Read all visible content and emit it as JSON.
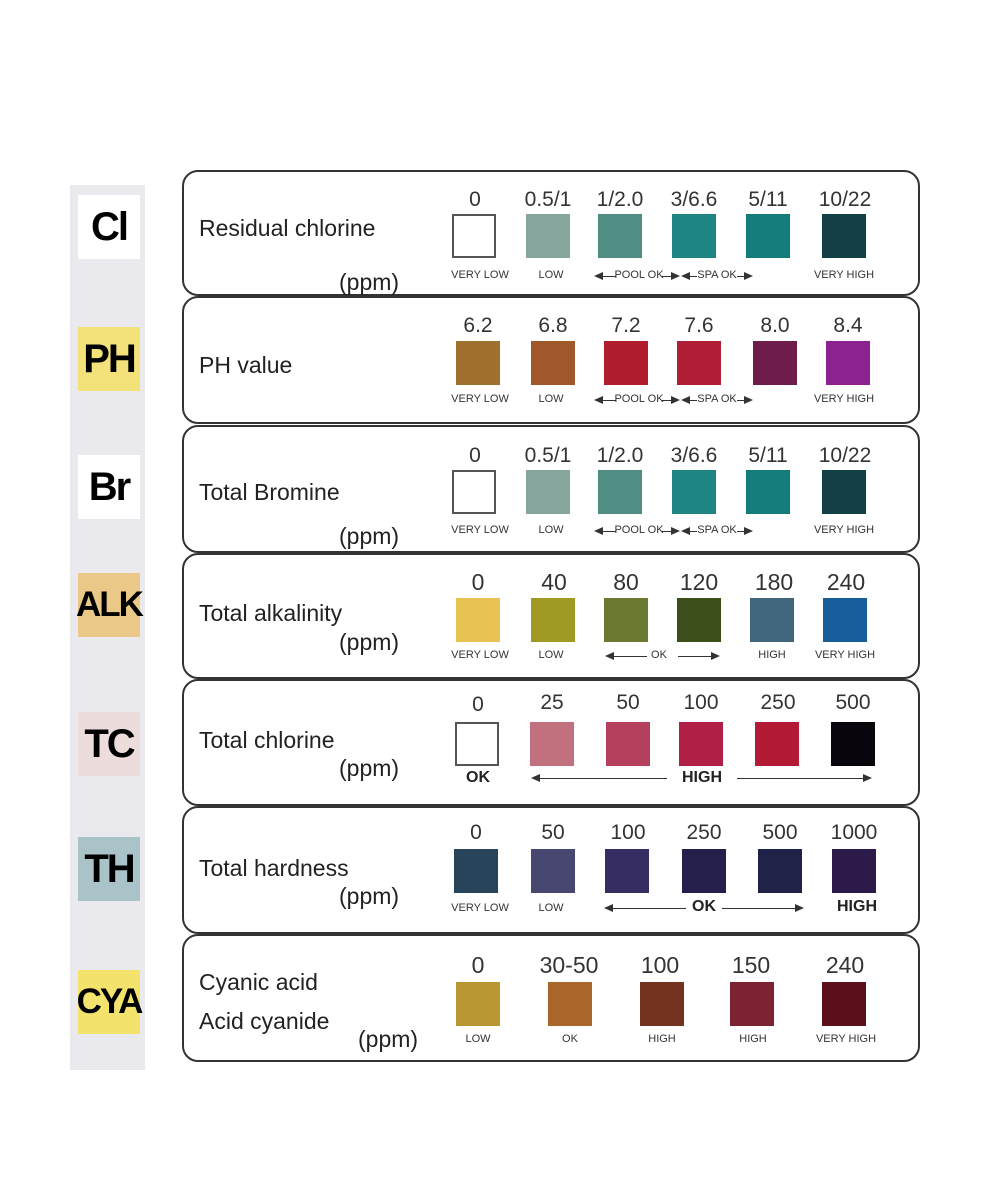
{
  "strip": {
    "pads": [
      {
        "label": "Cl",
        "color": "#ffffff"
      },
      {
        "label": "PH",
        "color": "#f3e27a"
      },
      {
        "label": "Br",
        "color": "#ffffff"
      },
      {
        "label": "ALK",
        "color": "#eac988"
      },
      {
        "label": "TC",
        "color": "#eddcdc"
      },
      {
        "label": "TH",
        "color": "#a9c3c9"
      },
      {
        "label": "CYA",
        "color": "#f3e36c"
      }
    ]
  },
  "rows": [
    {
      "label": "Residual chlorine",
      "unit": "(ppm)",
      "values": [
        "0",
        "0.5/1",
        "1/2.0",
        "3/6.6",
        "5/11",
        "10/22"
      ],
      "colors": [
        "#ffffff",
        "#86a59c",
        "#508e84",
        "#1f8583",
        "#157c7c",
        "#143f47"
      ],
      "captions": {
        "very_low": "VERY LOW",
        "low": "LOW",
        "pool_ok": "POOL OK",
        "spa_ok": "SPA OK",
        "very_high": "VERY HIGH"
      }
    },
    {
      "label": "PH value",
      "values": [
        "6.2",
        "6.8",
        "7.2",
        "7.6",
        "8.0",
        "8.4"
      ],
      "colors": [
        "#a2702e",
        "#a0572a",
        "#b01e2e",
        "#b01e35",
        "#6e1c4a",
        "#8c2290"
      ],
      "captions": {
        "very_low": "VERY LOW",
        "low": "LOW",
        "pool_ok": "POOL OK",
        "spa_ok": "SPA OK",
        "very_high": "VERY HIGH"
      }
    },
    {
      "label": "Total Bromine",
      "unit": "(ppm)",
      "values": [
        "0",
        "0.5/1",
        "1/2.0",
        "3/6.6",
        "5/11",
        "10/22"
      ],
      "colors": [
        "#ffffff",
        "#86a59c",
        "#508e84",
        "#1f8583",
        "#157c7c",
        "#143f47"
      ],
      "captions": {
        "very_low": "VERY LOW",
        "low": "LOW",
        "pool_ok": "POOL OK",
        "spa_ok": "SPA OK",
        "very_high": "VERY HIGH"
      }
    },
    {
      "label": "Total alkalinity",
      "unit": "(ppm)",
      "values": [
        "0",
        "40",
        "80",
        "120",
        "180",
        "240"
      ],
      "colors": [
        "#e8c252",
        "#a09a23",
        "#6a7a30",
        "#3c4f1a",
        "#41667e",
        "#185e9a"
      ],
      "captions": {
        "very_low": "VERY LOW",
        "low": "LOW",
        "ok": "OK",
        "high": "HIGH",
        "very_high": "VERY HIGH"
      }
    },
    {
      "label": "Total chlorine",
      "unit": "(ppm)",
      "values": [
        "0",
        "25",
        "50",
        "100",
        "250",
        "500"
      ],
      "colors": [
        "#ffffff",
        "#c1707d",
        "#b5405d",
        "#b01f45",
        "#b21a35",
        "#0a050c"
      ],
      "captions": {
        "ok": "OK",
        "high": "HIGH"
      }
    },
    {
      "label": "Total hardness",
      "unit": "(ppm)",
      "values": [
        "0",
        "50",
        "100",
        "250",
        "500",
        "1000"
      ],
      "colors": [
        "#27445a",
        "#47476f",
        "#362e63",
        "#251f4c",
        "#212248",
        "#2b1a4a"
      ],
      "captions": {
        "very_low": "VERY LOW",
        "low": "LOW",
        "ok": "OK",
        "high": "HIGH"
      }
    },
    {
      "label": "Cyanic acid",
      "label2": "Acid cyanide",
      "unit": "(ppm)",
      "values": [
        "0",
        "30-50",
        "100",
        "150",
        "240"
      ],
      "colors": [
        "#b99833",
        "#a9652a",
        "#74331e",
        "#7c2232",
        "#5a0f1a"
      ],
      "captions": {
        "low": "LOW",
        "ok": "OK",
        "high1": "HIGH",
        "high2": "HIGH",
        "very_high": "VERY HIGH"
      }
    }
  ]
}
